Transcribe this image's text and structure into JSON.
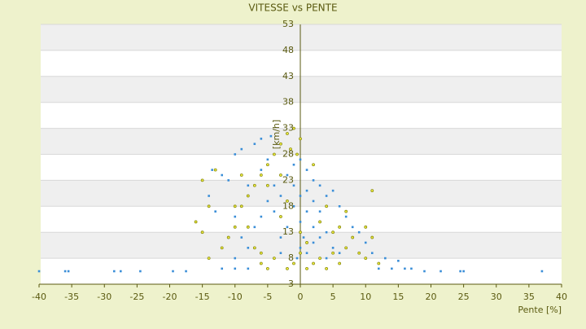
{
  "chart_data": {
    "type": "scatter",
    "title": "VITESSE vs PENTE",
    "x_label": "Pente [%]",
    "y_label": "[km/h]",
    "xlim": [
      -40,
      40
    ],
    "xticks": [
      -40,
      -35,
      -30,
      -25,
      -20,
      -15,
      -10,
      -5,
      0,
      5,
      10,
      15,
      20,
      25,
      30,
      35,
      40
    ],
    "ylim": [
      3,
      53
    ],
    "yticks": [
      3,
      8,
      13,
      18,
      23,
      28,
      33,
      38,
      43,
      48,
      53
    ],
    "grid": true,
    "series": [
      {
        "color": "#3a8ed8",
        "x": [
          -40,
          -36,
          -35.5,
          -28.5,
          -27.5,
          -24.5,
          -19.5,
          -17.5,
          -12,
          -10,
          -8,
          12,
          14,
          16,
          17,
          19,
          21.5,
          24.5,
          25,
          37,
          -6,
          -4.5,
          -7,
          -9,
          -10,
          -13.5,
          -12,
          -11,
          -14,
          -13,
          -10,
          -8,
          -6,
          -5,
          -4,
          -3,
          -2,
          -1,
          0,
          1,
          2,
          3,
          4,
          5,
          6,
          7,
          8,
          9,
          10,
          -1,
          0,
          1,
          2,
          3,
          -2,
          -3,
          -4,
          -5,
          -6,
          -7,
          0,
          1,
          2,
          4,
          5,
          6,
          11,
          13,
          15,
          -8,
          -9,
          -10,
          0,
          1,
          -1,
          2,
          3,
          0.5,
          -0.5,
          4,
          -3
        ],
        "values": [
          5.5,
          5.5,
          5.5,
          5.5,
          5.5,
          5.5,
          5.5,
          5.5,
          6,
          6,
          6,
          6,
          6,
          6,
          6,
          5.5,
          5.5,
          5.5,
          5.5,
          5.5,
          31,
          31.5,
          30,
          29,
          28,
          25,
          24,
          23,
          20,
          17,
          16,
          22,
          25,
          27,
          22,
          20,
          24,
          26,
          27,
          25,
          23,
          22,
          20,
          21,
          18,
          16,
          14,
          13,
          11,
          18,
          15,
          17,
          14,
          12,
          14,
          12,
          17,
          19,
          16,
          14,
          10,
          9,
          11,
          13,
          10,
          9,
          9,
          8,
          7.5,
          10,
          12,
          8,
          20,
          21,
          22,
          19,
          17,
          12,
          8,
          8,
          9
        ]
      },
      {
        "color": "#8a8a10",
        "x": [
          -1,
          -2,
          0,
          -3,
          -1.5,
          -4,
          -5,
          -6,
          -3,
          -7,
          -8,
          -9,
          -10,
          -11,
          -12,
          -14,
          -15,
          -16,
          -14,
          -15,
          -13,
          -7,
          -6,
          -5,
          -4,
          -2,
          -1,
          0,
          1,
          2,
          3,
          4,
          5,
          6,
          7,
          8,
          9,
          10,
          11,
          11,
          10,
          12,
          -3,
          -2,
          0,
          1,
          3,
          5,
          7,
          -8,
          -9,
          -5,
          2,
          -0.5,
          4,
          6,
          -10,
          -6
        ],
        "values": [
          33,
          32,
          31,
          30,
          29,
          28,
          26,
          24,
          24,
          22,
          20,
          18,
          14,
          12,
          10,
          8,
          13,
          15,
          18,
          23,
          25,
          10,
          7,
          6,
          8,
          6,
          7,
          9,
          6,
          7,
          8,
          6,
          9,
          7,
          10,
          12,
          9,
          14,
          12,
          21,
          8,
          7,
          16,
          19,
          13,
          11,
          15,
          13,
          17,
          14,
          24,
          22,
          26,
          28,
          18,
          14,
          18,
          9
        ]
      }
    ]
  }
}
